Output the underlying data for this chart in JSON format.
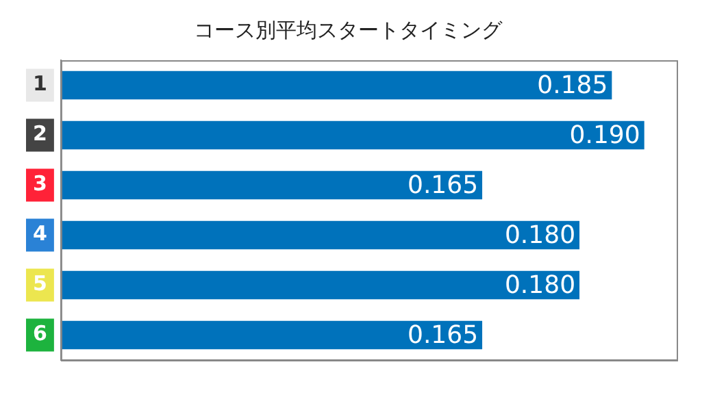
{
  "chart_data": {
    "type": "bar",
    "orientation": "horizontal",
    "title": "コース別平均スタートタイミング",
    "categories": [
      "1",
      "2",
      "3",
      "4",
      "5",
      "6"
    ],
    "values": [
      0.185,
      0.19,
      0.165,
      0.18,
      0.18,
      0.165
    ],
    "color": "#0072bb",
    "xlim": [
      0.1,
      0.195
    ],
    "tick_labels": "y",
    "value_labels": [
      "0.185",
      "0.190",
      "0.165",
      "0.180",
      "0.180",
      "0.165"
    ],
    "grid": false,
    "legend": false
  }
}
